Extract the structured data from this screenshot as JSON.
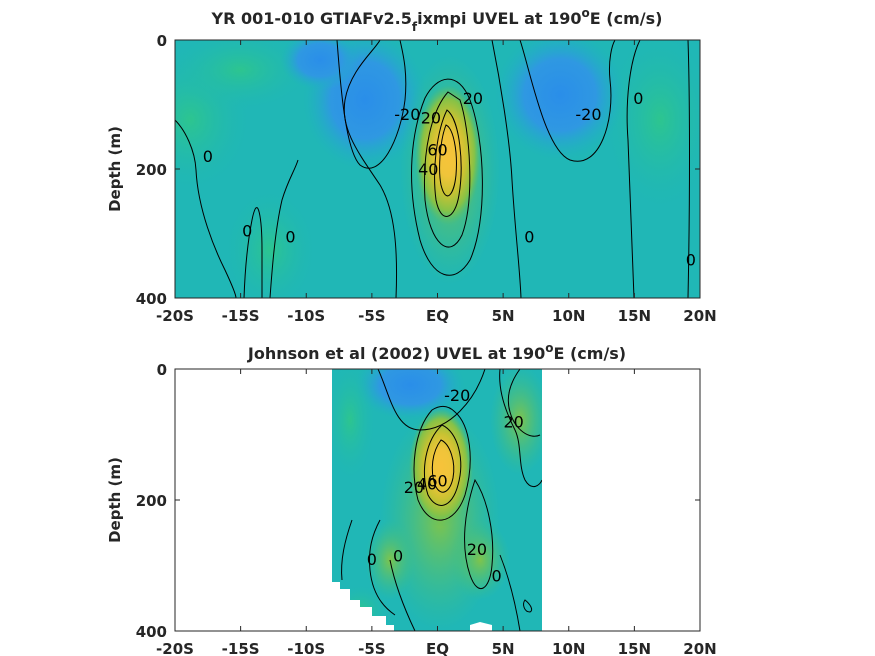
{
  "chart_data": [
    {
      "type": "heatmap",
      "title": "YR 001-010 GTIAFv2.5",
      "title_subscript": "f",
      "title_rest": "ixmpi UVEL at 190",
      "title_superscript": "o",
      "title_end": "E (cm/s)",
      "ylabel": "Depth (m)",
      "xlim": [
        -20,
        20
      ],
      "ylim": [
        0,
        400
      ],
      "y_reversed": true,
      "x_ticks": [
        -20,
        -15,
        -10,
        -5,
        0,
        5,
        10,
        15,
        20
      ],
      "x_tick_labels": [
        "-20S",
        "-15S",
        "-10S",
        "-5S",
        "EQ",
        "5N",
        "10N",
        "15N",
        "20N"
      ],
      "y_ticks": [
        0,
        200,
        400
      ],
      "y_tick_labels": [
        "0",
        "200",
        "400"
      ],
      "data_extent": [
        -20,
        20
      ],
      "field": {
        "description": "zonal velocity",
        "core": {
          "lat": 0.5,
          "depth": 160,
          "max": 60
        },
        "lows": [
          {
            "lat": -4,
            "depth": 80,
            "min": -25
          },
          {
            "lat": 10,
            "depth": 70,
            "min": -25
          }
        ]
      },
      "contour_labels": [
        {
          "text": "-20",
          "lat": -2.3,
          "depth": 115
        },
        {
          "text": "20",
          "lat": -0.5,
          "depth": 120
        },
        {
          "text": "20",
          "lat": 2.7,
          "depth": 90
        },
        {
          "text": "40",
          "lat": -0.7,
          "depth": 200
        },
        {
          "text": "60",
          "lat": 0.0,
          "depth": 170
        },
        {
          "text": "-20",
          "lat": 11.5,
          "depth": 115
        },
        {
          "text": "0",
          "lat": 15.3,
          "depth": 90
        },
        {
          "text": "0",
          "lat": -17.5,
          "depth": 180
        },
        {
          "text": "0",
          "lat": -14.5,
          "depth": 295
        },
        {
          "text": "0",
          "lat": -11.2,
          "depth": 305
        },
        {
          "text": "0",
          "lat": 7.0,
          "depth": 305
        },
        {
          "text": "0",
          "lat": 19.3,
          "depth": 340
        }
      ]
    },
    {
      "type": "heatmap",
      "title": "Johnson et al (2002) UVEL at 190",
      "title_superscript": "o",
      "title_end": "E (cm/s)",
      "ylabel": "Depth (m)",
      "xlim": [
        -20,
        20
      ],
      "ylim": [
        0,
        400
      ],
      "y_reversed": true,
      "x_ticks": [
        -20,
        -15,
        -10,
        -5,
        0,
        5,
        10,
        15,
        20
      ],
      "x_tick_labels": [
        "-20S",
        "-15S",
        "-10S",
        "-5S",
        "EQ",
        "5N",
        "10N",
        "15N",
        "20N"
      ],
      "y_ticks": [
        0,
        200,
        400
      ],
      "y_tick_labels": [
        "0",
        "200",
        "400"
      ],
      "data_extent": [
        -8,
        8
      ],
      "field": {
        "description": "zonal velocity",
        "core": {
          "lat": 0.3,
          "depth": 150,
          "max": 60
        },
        "lows": [
          {
            "lat": -1,
            "depth": 30,
            "min": -30
          }
        ]
      },
      "contour_labels": [
        {
          "text": "-20",
          "lat": 1.5,
          "depth": 40
        },
        {
          "text": "20",
          "lat": 5.8,
          "depth": 80
        },
        {
          "text": "40",
          "lat": -0.8,
          "depth": 175
        },
        {
          "text": "20",
          "lat": -1.8,
          "depth": 180
        },
        {
          "text": "60",
          "lat": 0.0,
          "depth": 170
        },
        {
          "text": "0",
          "lat": -5.0,
          "depth": 290
        },
        {
          "text": "0",
          "lat": -3.0,
          "depth": 285
        },
        {
          "text": "20",
          "lat": 3.0,
          "depth": 275
        },
        {
          "text": "0",
          "lat": 4.5,
          "depth": 315
        }
      ]
    }
  ]
}
